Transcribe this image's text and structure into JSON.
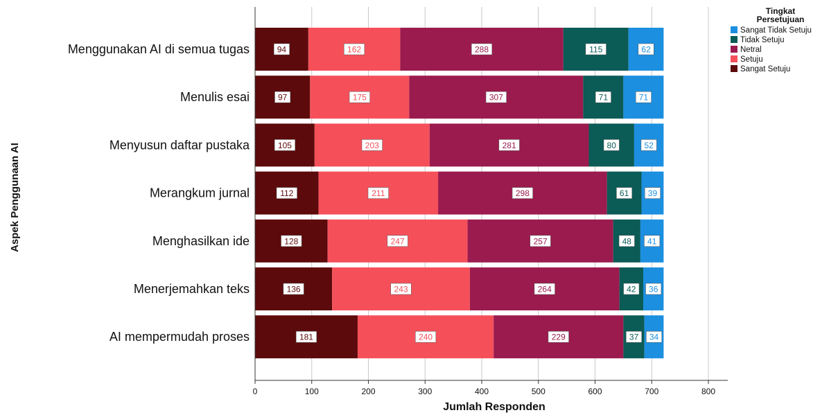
{
  "chart_data": {
    "type": "bar",
    "orientation": "horizontal",
    "stacked": true,
    "xlabel": "Jumlah Responden",
    "ylabel": "Aspek Penggunaan AI",
    "xlim": [
      0,
      800
    ],
    "xticks": [
      0,
      100,
      200,
      300,
      400,
      500,
      600,
      700,
      800
    ],
    "grid": true,
    "legend_title": "Tingkat Persetujuan",
    "legend_placement": "top-right",
    "legend_order": [
      "Sangat Tidak Setuju",
      "Tidak Setuju",
      "Netral",
      "Setuju",
      "Sangat Setuju"
    ],
    "categories": [
      "Menggunakan AI di semua tugas",
      "Menulis esai",
      "Menyusun daftar pustaka",
      "Merangkum jurnal",
      "Menghasilkan ide",
      "Menerjemahkan teks",
      "AI mempermudah proses"
    ],
    "series": [
      {
        "name": "Sangat Setuju",
        "color": "#5c0a0c",
        "values": [
          94,
          97,
          105,
          112,
          128,
          136,
          181
        ]
      },
      {
        "name": "Setuju",
        "color": "#f5505a",
        "values": [
          162,
          175,
          203,
          211,
          247,
          243,
          240
        ]
      },
      {
        "name": "Netral",
        "color": "#9b1b4e",
        "values": [
          288,
          307,
          281,
          298,
          257,
          264,
          229
        ]
      },
      {
        "name": "Tidak Setuju",
        "color": "#0b5b56",
        "values": [
          115,
          71,
          80,
          61,
          48,
          42,
          37
        ]
      },
      {
        "name": "Sangat Tidak Setuju",
        "color": "#1c8fe0",
        "values": [
          62,
          71,
          52,
          39,
          41,
          36,
          34
        ]
      }
    ]
  }
}
